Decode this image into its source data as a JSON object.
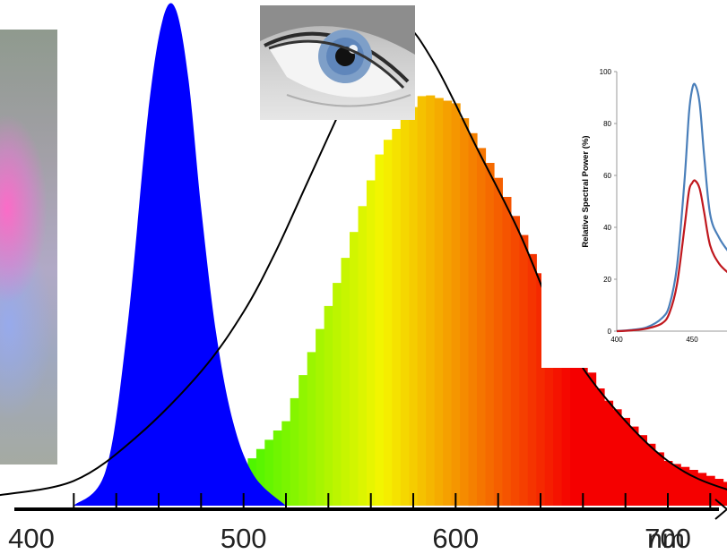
{
  "chart_data": [
    {
      "type": "area",
      "x_ticks": [
        400,
        500,
        600,
        700
      ],
      "x_unit": "nm",
      "xlim": [
        380,
        780
      ],
      "series": [
        {
          "x": [
            420,
            435,
            445,
            455,
            462,
            468,
            474,
            480,
            487,
            495,
            505,
            520
          ],
          "values": [
            0,
            0.07,
            0.35,
            0.79,
            0.98,
            1.0,
            0.86,
            0.6,
            0.35,
            0.17,
            0.06,
            0
          ],
          "color": "#0000ff"
        },
        {
          "x": [
            430,
            490,
            520,
            545,
            565,
            585,
            600,
            620,
            645,
            670,
            700,
            740,
            770
          ],
          "values": [
            0,
            0.03,
            0.17,
            0.46,
            0.72,
            0.83,
            0.81,
            0.66,
            0.42,
            0.22,
            0.09,
            0.03,
            0.01
          ]
        },
        {
          "x": [
            383,
            420,
            450,
            480,
            500,
            515,
            530,
            545,
            560,
            575,
            590,
            610,
            630,
            650,
            670,
            700,
            730,
            770
          ],
          "values": [
            0.02,
            0.05,
            0.14,
            0.27,
            0.39,
            0.51,
            0.65,
            0.79,
            0.93,
            0.97,
            0.89,
            0.72,
            0.55,
            0.35,
            0.22,
            0.09,
            0.03,
            0.0
          ],
          "color": "#000000"
        }
      ]
    },
    {
      "type": "line",
      "ylabel": "Relative Spectral Power (%)",
      "xlim": [
        400,
        475
      ],
      "ylim": [
        0,
        100
      ],
      "x_ticks": [
        400,
        450
      ],
      "y_ticks": [
        0,
        20,
        40,
        60,
        80,
        100
      ],
      "series": [
        {
          "x": [
            400,
            410,
            420,
            430,
            435,
            440,
            445,
            448,
            450,
            452,
            455,
            458,
            462,
            468,
            475
          ],
          "values": [
            0,
            0.5,
            1.5,
            5,
            10,
            25,
            58,
            84,
            93,
            95,
            88,
            68,
            45,
            36,
            30
          ],
          "color": "#4a7fba"
        },
        {
          "x": [
            400,
            410,
            420,
            430,
            435,
            440,
            445,
            448,
            450,
            452,
            455,
            458,
            462,
            468,
            475
          ],
          "values": [
            0,
            0.3,
            1,
            3,
            7,
            18,
            40,
            54,
            57,
            58,
            55,
            46,
            33,
            26,
            22
          ],
          "color": "#c0181e"
        }
      ]
    }
  ]
}
